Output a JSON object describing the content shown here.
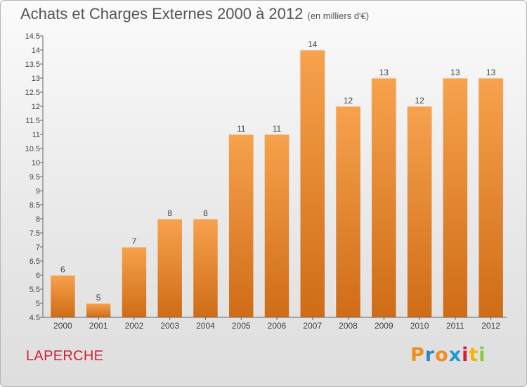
{
  "title": "Achats et Charges Externes 2000 à 2012",
  "unit": "(en milliers d'€)",
  "location_label": "LAPERCHE",
  "logo": {
    "text": "Proxiti",
    "letter_colors": [
      "#f28c1e",
      "#2a86c8",
      "#f28c1e",
      "#1e9bd7",
      "#d0213a",
      "#f2b600",
      "#8cc63f"
    ]
  },
  "colors": {
    "bar_top": "#f7a24d",
    "bar_bottom": "#cf6c17",
    "axis": "#666666",
    "grid": "#e2e2e2",
    "label": "#444444"
  },
  "chart_data": {
    "type": "bar",
    "categories": [
      "2000",
      "2001",
      "2002",
      "2003",
      "2004",
      "2005",
      "2006",
      "2007",
      "2008",
      "2009",
      "2010",
      "2011",
      "2012"
    ],
    "values": [
      6,
      5,
      7,
      8,
      8,
      11,
      11,
      14,
      12,
      13,
      12,
      13,
      13
    ],
    "data_labels": [
      "6",
      "5",
      "7",
      "8",
      "8",
      "11",
      "11",
      "14",
      "12",
      "13",
      "12",
      "13",
      "13"
    ],
    "ylim": [
      4.5,
      14.5
    ],
    "yticks": [
      "4.5",
      "5",
      "5.5",
      "6",
      "6.5",
      "7",
      "7.5",
      "8",
      "8.5",
      "9",
      "9.5",
      "10",
      "10.5",
      "11",
      "11.5",
      "12",
      "12.5",
      "13",
      "13.5",
      "14",
      "14.5"
    ],
    "xlabel": "",
    "ylabel": "",
    "grid": false,
    "legend": "none"
  }
}
